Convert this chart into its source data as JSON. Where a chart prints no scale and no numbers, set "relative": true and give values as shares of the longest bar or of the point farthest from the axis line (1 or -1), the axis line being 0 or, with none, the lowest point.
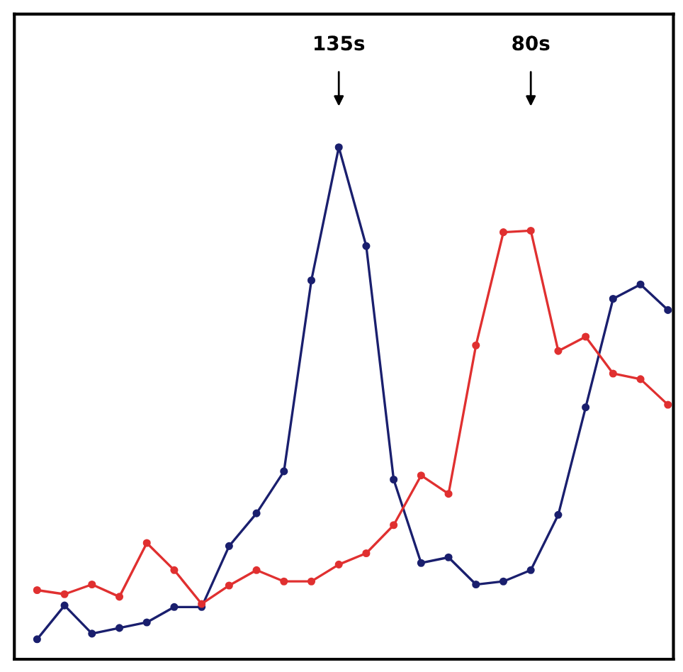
{
  "chart_data": {
    "type": "line",
    "relative": true,
    "marker": "circle",
    "line_style": "solid",
    "legend": false,
    "tick_labels": false,
    "categories": [
      null,
      null,
      null,
      null,
      null,
      null,
      null,
      null,
      null,
      null,
      null,
      null,
      null,
      null,
      null,
      null,
      null,
      null,
      null,
      null,
      null,
      null,
      null,
      null
    ],
    "series": [
      {
        "color": "#1a1f6e",
        "values": [
          0.039,
          0.105,
          0.05,
          0.061,
          0.072,
          0.102,
          0.102,
          0.221,
          0.285,
          0.367,
          0.74,
          1,
          0.807,
          0.351,
          0.188,
          0.199,
          0.146,
          0.152,
          0.174,
          0.282,
          0.492,
          0.704,
          0.732,
          0.682
        ]
      },
      {
        "color": "#e03030",
        "values": [
          0.135,
          0.127,
          0.146,
          0.122,
          0.227,
          0.174,
          0.108,
          0.144,
          0.174,
          0.152,
          0.152,
          0.185,
          0.207,
          0.262,
          0.359,
          0.323,
          0.613,
          0.834,
          0.837,
          0.602,
          0.63,
          0.558,
          0.547,
          0.497
        ]
      }
    ],
    "annotations": [
      "135s",
      "80s"
    ]
  }
}
